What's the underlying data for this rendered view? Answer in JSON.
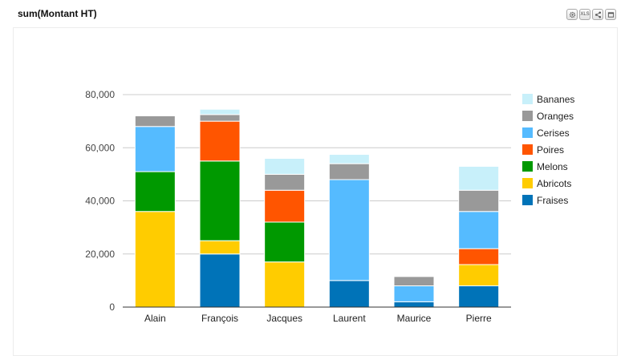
{
  "panel": {
    "title": "sum(Montant HT)"
  },
  "toolbar": {
    "buttons": [
      {
        "name": "settings",
        "icon": "gear-icon"
      },
      {
        "name": "export-xls",
        "label": "XLS",
        "icon": "xls-icon"
      },
      {
        "name": "share",
        "icon": "share-icon"
      },
      {
        "name": "maximize",
        "icon": "window-icon"
      }
    ]
  },
  "chart_data": {
    "type": "bar",
    "stacked": true,
    "title": "",
    "xlabel": "",
    "ylabel": "",
    "ylim": [
      0,
      80000
    ],
    "yticks": [
      0,
      20000,
      40000,
      60000,
      80000
    ],
    "ytick_labels": [
      "0",
      "20,000",
      "40,000",
      "60,000",
      "80,000"
    ],
    "grid": true,
    "legend_position": "right",
    "categories": [
      "Alain",
      "François",
      "Jacques",
      "Laurent",
      "Maurice",
      "Pierre"
    ],
    "series": [
      {
        "name": "Fraises",
        "color": "#0073b8",
        "values": [
          0,
          20000,
          0,
          10000,
          2000,
          8000
        ]
      },
      {
        "name": "Abricots",
        "color": "#ffcc00",
        "values": [
          36000,
          5000,
          17000,
          0,
          0,
          8000
        ]
      },
      {
        "name": "Melons",
        "color": "#009900",
        "values": [
          15000,
          30000,
          15000,
          0,
          0,
          0
        ]
      },
      {
        "name": "Poires",
        "color": "#ff5500",
        "values": [
          0,
          15000,
          12000,
          0,
          0,
          6000
        ]
      },
      {
        "name": "Cerises",
        "color": "#55bbff",
        "values": [
          17000,
          0,
          0,
          38000,
          6000,
          14000
        ]
      },
      {
        "name": "Oranges",
        "color": "#999999",
        "values": [
          4000,
          2500,
          6000,
          6000,
          3500,
          8000
        ]
      },
      {
        "name": "Bananes",
        "color": "#c8f0fa",
        "values": [
          0,
          2000,
          6000,
          3500,
          0,
          9000
        ]
      }
    ]
  }
}
